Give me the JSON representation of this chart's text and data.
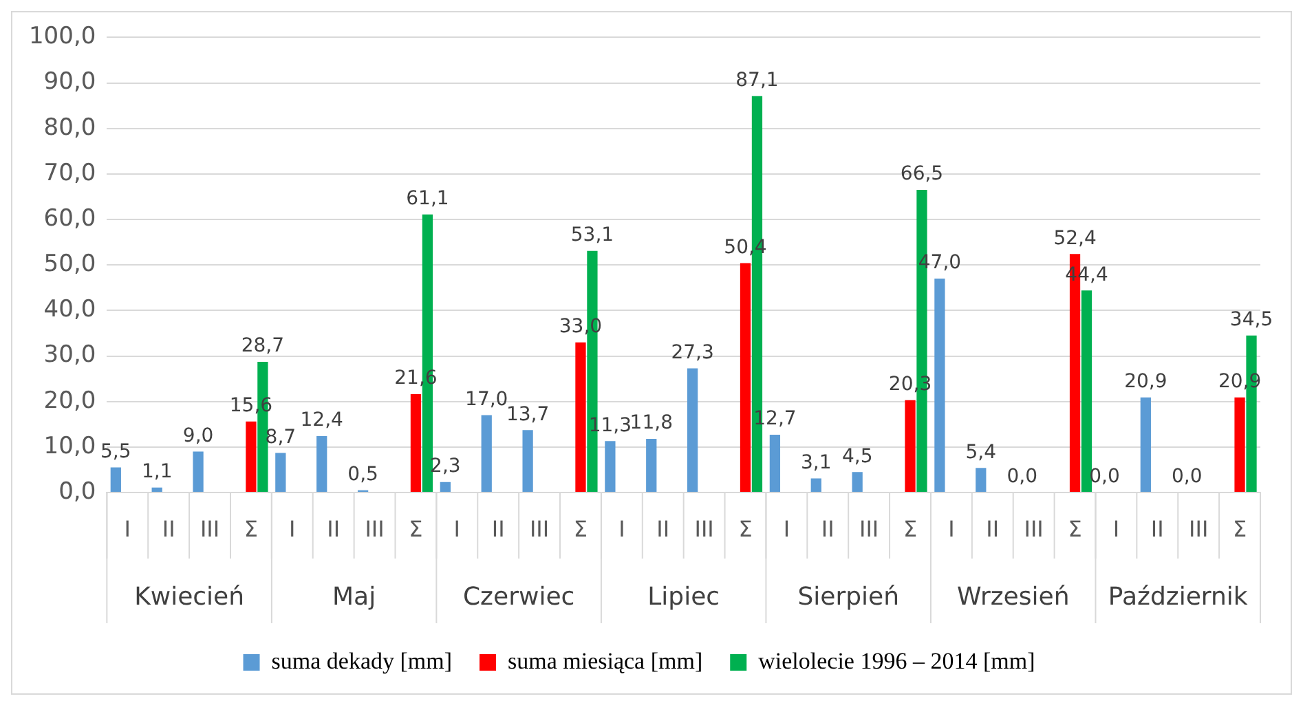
{
  "chart_data": {
    "type": "bar",
    "categories": [
      "I",
      "II",
      "III",
      "Σ",
      "I",
      "II",
      "III",
      "Σ",
      "I",
      "II",
      "III",
      "Σ",
      "I",
      "II",
      "III",
      "Σ",
      "I",
      "II",
      "III",
      "Σ",
      "I",
      "II",
      "III",
      "Σ",
      "I",
      "II",
      "III",
      "Σ"
    ],
    "series": [
      {
        "name": "suma dekady [mm]",
        "color": "#5b9bd5",
        "values": [
          5.5,
          1.1,
          9.0,
          null,
          8.7,
          12.4,
          0.5,
          null,
          2.3,
          17.0,
          13.7,
          null,
          11.3,
          11.8,
          27.3,
          null,
          12.7,
          3.1,
          4.5,
          null,
          47.0,
          5.4,
          0.0,
          null,
          0.0,
          20.9,
          0.0,
          null
        ],
        "value_labels": [
          "5,5",
          "1,1",
          "9,0",
          null,
          "8,7",
          "12,4",
          "0,5",
          null,
          "2,3",
          "17,0",
          "13,7",
          null,
          "11,3",
          "11,8",
          "27,3",
          null,
          "12,7",
          "3,1",
          "4,5",
          null,
          "47,0",
          "5,4",
          "0,0",
          null,
          "0,0",
          "20,9",
          "0,0",
          null
        ]
      },
      {
        "name": "suma miesiąca [mm]",
        "color": "#ff0000",
        "values": [
          null,
          null,
          null,
          15.6,
          null,
          null,
          null,
          21.6,
          null,
          null,
          null,
          33.0,
          null,
          null,
          null,
          50.4,
          null,
          null,
          null,
          20.3,
          null,
          null,
          null,
          52.4,
          null,
          null,
          null,
          20.9
        ],
        "value_labels": [
          null,
          null,
          null,
          "15,6",
          null,
          null,
          null,
          "21,6",
          null,
          null,
          null,
          "33,0",
          null,
          null,
          null,
          "50,4",
          null,
          null,
          null,
          "20,3",
          null,
          null,
          null,
          "52,4",
          null,
          null,
          null,
          "20,9"
        ]
      },
      {
        "name": "wielolecie 1996 – 2014 [mm]",
        "color": "#00b050",
        "values": [
          null,
          null,
          null,
          28.7,
          null,
          null,
          null,
          61.1,
          null,
          null,
          null,
          53.1,
          null,
          null,
          null,
          87.1,
          null,
          null,
          null,
          66.5,
          null,
          null,
          null,
          44.4,
          null,
          null,
          null,
          34.5
        ],
        "value_labels": [
          null,
          null,
          null,
          "28,7",
          null,
          null,
          null,
          "61,1",
          null,
          null,
          null,
          "53,1",
          null,
          null,
          null,
          "87,1",
          null,
          null,
          null,
          "66,5",
          null,
          null,
          null,
          "44,4",
          null,
          null,
          null,
          "34,5"
        ]
      }
    ],
    "annotations": [
      "Kwiecień",
      "Maj",
      "Czerwiec",
      "Lipiec",
      "Sierpień",
      "Wrzesień",
      "Październik"
    ],
    "ylim": [
      0,
      100
    ],
    "yticks": [
      {
        "value": 0,
        "label": "0,0"
      },
      {
        "value": 10,
        "label": "10,0"
      },
      {
        "value": 20,
        "label": "20,0"
      },
      {
        "value": 30,
        "label": "30,0"
      },
      {
        "value": 40,
        "label": "40,0"
      },
      {
        "value": 50,
        "label": "50,0"
      },
      {
        "value": 60,
        "label": "60,0"
      },
      {
        "value": 70,
        "label": "70,0"
      },
      {
        "value": 80,
        "label": "80,0"
      },
      {
        "value": 90,
        "label": "90,0"
      },
      {
        "value": 100,
        "label": "100,0"
      }
    ],
    "grid": "y",
    "legend": "bottom"
  }
}
